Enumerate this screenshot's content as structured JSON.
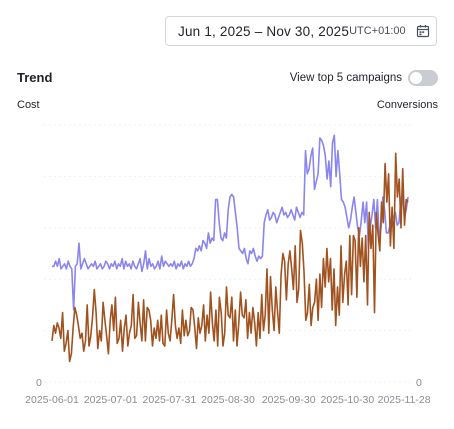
{
  "date_picker": {
    "range": "Jun 1, 2025 – Nov 30, 2025",
    "timezone": "UTC+01:00",
    "icon": "calendar-icon"
  },
  "trend": {
    "title": "Trend",
    "top5_label": "View top 5 campaigns",
    "top5_enabled": false
  },
  "colors": {
    "cost": "#8b85ee",
    "conversions": "#a0521f",
    "grid": "#eef0f3",
    "toggle_off": "#c9ccd1"
  },
  "chart_data": {
    "type": "line",
    "left_axis_label": "Cost",
    "right_axis_label": "Conversions",
    "left_axis_zero": "0",
    "right_axis_zero": "0",
    "x_tick_labels": [
      "2025-06-01",
      "2025-07-01",
      "2025-07-31",
      "2025-08-30",
      "2025-09-30",
      "2025-10-30",
      "2025-11-28"
    ],
    "x_start": "2025-06-01",
    "x_end": "2025-11-30",
    "y_range": [
      0,
      100
    ],
    "grid": true,
    "series": [
      {
        "name": "Cost",
        "axis": "left",
        "color": "#8b85ee",
        "values": [
          45,
          45,
          47,
          45,
          48,
          44,
          45,
          46,
          44,
          47,
          45,
          44,
          28,
          45,
          46,
          54,
          44,
          46,
          48,
          46,
          44,
          45,
          46,
          45,
          47,
          44,
          45,
          46,
          44,
          45,
          47,
          46,
          44,
          46,
          45,
          47,
          44,
          46,
          45,
          48,
          44,
          47,
          45,
          46,
          44,
          47,
          45,
          44,
          46,
          48,
          43,
          46,
          51,
          44,
          48,
          45,
          46,
          44,
          45,
          47,
          44,
          49,
          45,
          47,
          46,
          45,
          46,
          45,
          47,
          44,
          46,
          45,
          47,
          44,
          46,
          45,
          47,
          45,
          46,
          48,
          52,
          51,
          53,
          51,
          55,
          54,
          52,
          58,
          54,
          56,
          55,
          71,
          71,
          62,
          56,
          55,
          58,
          56,
          67,
          72,
          73,
          72,
          66,
          60,
          52,
          51,
          50,
          52,
          48,
          46,
          51,
          50,
          52,
          49,
          47,
          49,
          48,
          49,
          62,
          65,
          67,
          63,
          64,
          66,
          65,
          62,
          64,
          66,
          68,
          65,
          66,
          64,
          65,
          67,
          65,
          63,
          68,
          66,
          64,
          66,
          65,
          90,
          81,
          83,
          88,
          91,
          75,
          78,
          81,
          95,
          94,
          92,
          88,
          79,
          86,
          76,
          93,
          96,
          80,
          90,
          81,
          71,
          70,
          68,
          64,
          60,
          63,
          68,
          72,
          66,
          60,
          57,
          63,
          70,
          62,
          70,
          52,
          60,
          65,
          71,
          60,
          71,
          56,
          60,
          72,
          67,
          58,
          58,
          61,
          64,
          64,
          66,
          61,
          62,
          71,
          73,
          64,
          67,
          72
        ]
      },
      {
        "name": "Conversions",
        "axis": "right",
        "color": "#a0521f",
        "values": [
          16,
          22,
          19,
          23,
          21,
          17,
          27,
          12,
          15,
          20,
          8,
          11,
          21,
          29,
          26,
          22,
          17,
          19,
          12,
          16,
          30,
          14,
          18,
          25,
          36,
          27,
          13,
          20,
          16,
          31,
          24,
          18,
          11,
          24,
          30,
          20,
          33,
          15,
          17,
          24,
          12,
          21,
          26,
          14,
          19,
          22,
          34,
          17,
          18,
          31,
          23,
          16,
          32,
          16,
          29,
          28,
          24,
          14,
          21,
          17,
          24,
          16,
          26,
          15,
          14,
          28,
          19,
          16,
          24,
          34,
          22,
          17,
          21,
          15,
          28,
          18,
          24,
          18,
          20,
          29,
          28,
          21,
          13,
          25,
          19,
          22,
          30,
          16,
          26,
          19,
          35,
          23,
          16,
          28,
          14,
          33,
          27,
          14,
          19,
          37,
          26,
          25,
          33,
          16,
          28,
          14,
          23,
          35,
          26,
          25,
          32,
          17,
          27,
          19,
          29,
          23,
          14,
          27,
          17,
          34,
          20,
          26,
          44,
          19,
          41,
          28,
          20,
          37,
          27,
          19,
          42,
          50,
          47,
          32,
          46,
          51,
          44,
          36,
          53,
          31,
          36,
          59,
          54,
          43,
          24,
          27,
          38,
          22,
          29,
          31,
          40,
          24,
          42,
          29,
          48,
          37,
          52,
          39,
          48,
          28,
          44,
          22,
          37,
          26,
          53,
          31,
          42,
          47,
          30,
          57,
          34,
          57,
          55,
          33,
          60,
          45,
          56,
          39,
          57,
          30,
          66,
          52,
          61,
          27,
          66,
          58,
          51,
          70,
          62,
          85,
          70,
          81,
          53,
          68,
          52,
          89,
          72,
          79,
          60,
          83,
          61,
          71,
          70
        ]
      }
    ]
  }
}
